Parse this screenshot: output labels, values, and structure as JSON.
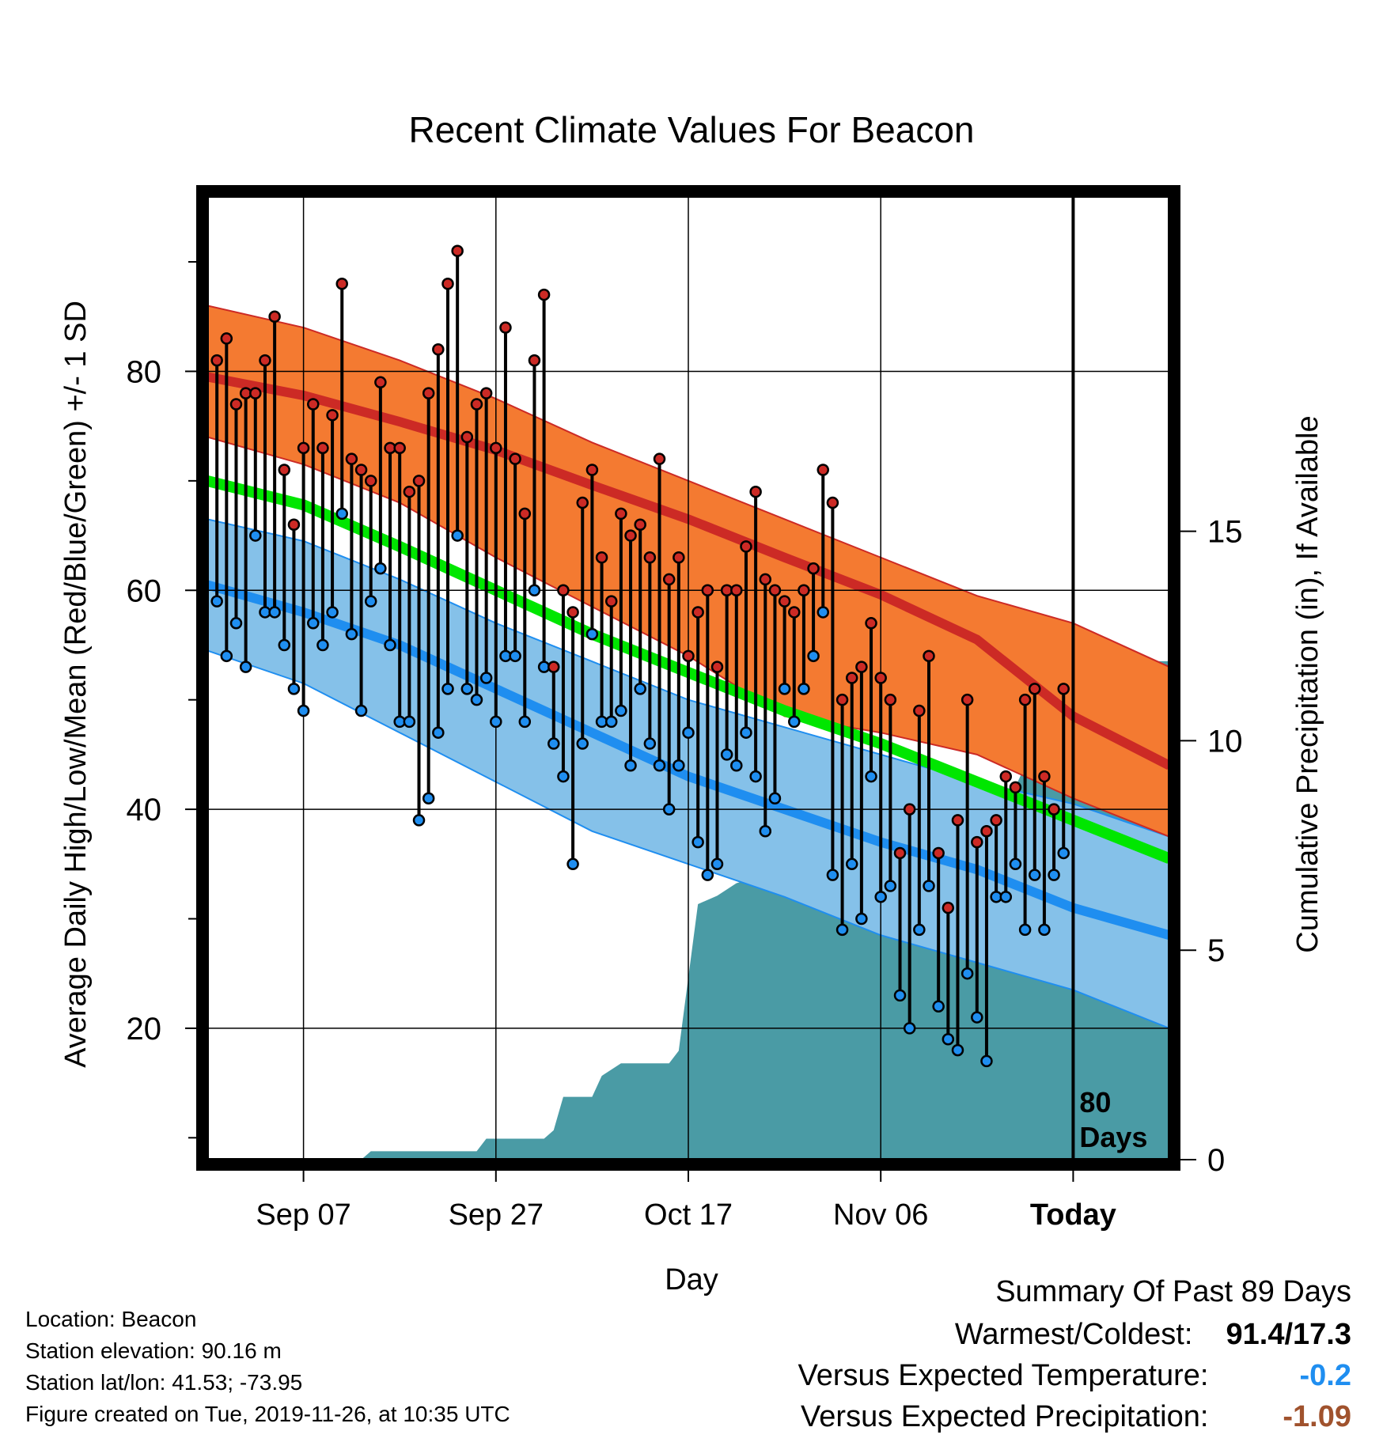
{
  "chart_data": {
    "type": "line",
    "title": "Recent Climate Values For Beacon",
    "xlabel": "Day",
    "ylabel": "Average Daily High/Low/Mean (Red/Blue/Green) +/- 1 SD",
    "y2label": "Cumulative Precipitation (in), If Available",
    "xlim": [
      0,
      100
    ],
    "ylim": [
      8,
      96
    ],
    "y2lim": [
      0,
      23
    ],
    "x_ticks": [
      {
        "x": 10,
        "label": "Sep 07"
      },
      {
        "x": 30,
        "label": "Sep 27"
      },
      {
        "x": 50,
        "label": "Oct 17"
      },
      {
        "x": 70,
        "label": "Nov 06"
      },
      {
        "x": 90,
        "label": "Today"
      }
    ],
    "y_ticks": [
      20,
      40,
      60,
      80
    ],
    "y_minor_ticks": [
      10,
      30,
      50,
      70,
      90
    ],
    "y2_ticks": [
      0,
      5,
      10,
      15
    ],
    "today_label": "80\nDays",
    "colors": {
      "high_band": "#f47a31",
      "high_edge": "#cc2a25",
      "high_mean": "#cc2a25",
      "low_band": "#85c1e9",
      "low_edge": "#1f8ef0",
      "low_mean": "#1f8ef0",
      "mean_line": "#00e600",
      "precip": "#4a9ba5",
      "high_dot": "#cc2a25",
      "low_dot": "#1f8ef0"
    },
    "normals_x": [
      0,
      10,
      20,
      30,
      40,
      50,
      60,
      70,
      80,
      90,
      100
    ],
    "normal_high": [
      79.5,
      77.8,
      75.4,
      72.8,
      69.6,
      66.5,
      63.0,
      59.6,
      55.5,
      48.5,
      44.0
    ],
    "normal_high_sd_upper": [
      86.0,
      84.0,
      81.0,
      77.5,
      73.5,
      70.0,
      66.5,
      63.0,
      59.5,
      57.0,
      53.0
    ],
    "normal_high_sd_lower": [
      74.0,
      71.5,
      68.0,
      63.0,
      58.5,
      54.0,
      48.5,
      47.0,
      45.0,
      41.0,
      37.5
    ],
    "normal_low": [
      60.5,
      58.0,
      55.0,
      51.0,
      47.0,
      43.0,
      40.0,
      37.0,
      34.5,
      31.0,
      28.5
    ],
    "normal_low_sd_upper": [
      66.5,
      64.5,
      61.0,
      57.0,
      53.5,
      50.0,
      47.5,
      45.0,
      42.5,
      40.5,
      37.5
    ],
    "normal_low_sd_lower": [
      54.5,
      51.5,
      47.0,
      42.5,
      38.0,
      35.0,
      32.0,
      28.5,
      26.0,
      23.5,
      20.0
    ],
    "normal_mean": [
      70.0,
      67.8,
      64.0,
      60.0,
      56.0,
      52.5,
      49.0,
      46.0,
      42.5,
      39.0,
      35.5
    ],
    "observed": {
      "x": [
        1,
        2,
        3,
        4,
        5,
        6,
        7,
        8,
        9,
        10,
        11,
        12,
        13,
        14,
        15,
        16,
        17,
        18,
        19,
        20,
        21,
        22,
        23,
        24,
        25,
        26,
        27,
        28,
        29,
        30,
        31,
        32,
        33,
        34,
        35,
        36,
        37,
        38,
        39,
        40,
        41,
        42,
        43,
        44,
        45,
        46,
        47,
        48,
        49,
        50,
        51,
        52,
        53,
        54,
        55,
        56,
        57,
        58,
        59,
        60,
        61,
        62,
        63,
        64,
        65,
        66,
        67,
        68,
        69,
        70,
        71,
        72,
        73,
        74,
        75,
        76,
        77,
        78,
        79,
        80,
        81,
        82,
        83,
        84,
        85,
        86,
        87,
        88,
        89
      ],
      "high": [
        81,
        83,
        77,
        78,
        78,
        81,
        85,
        71,
        66,
        73,
        77,
        73,
        76,
        88,
        72,
        71,
        70,
        79,
        73,
        73,
        69,
        70,
        78,
        82,
        88,
        91,
        74,
        77,
        78,
        73,
        84,
        72,
        67,
        81,
        87,
        53,
        60,
        58,
        68,
        71,
        63,
        59,
        67,
        65,
        66,
        63,
        72,
        61,
        63,
        54,
        58,
        60,
        53,
        60,
        60,
        64,
        69,
        61,
        60,
        59,
        58,
        60,
        62,
        71,
        68,
        50,
        52,
        53,
        57,
        52,
        50,
        36,
        40,
        49,
        54,
        36,
        31,
        39,
        50,
        37,
        38,
        39,
        43,
        42,
        50,
        51,
        43,
        40,
        51
      ],
      "low": [
        59,
        54,
        57,
        53,
        65,
        58,
        58,
        55,
        51,
        49,
        57,
        55,
        58,
        67,
        56,
        49,
        59,
        62,
        55,
        48,
        48,
        39,
        41,
        47,
        51,
        65,
        51,
        50,
        52,
        48,
        54,
        54,
        48,
        60,
        53,
        46,
        43,
        35,
        46,
        56,
        48,
        48,
        49,
        44,
        51,
        46,
        44,
        40,
        44,
        47,
        37,
        34,
        35,
        45,
        44,
        47,
        43,
        38,
        41,
        51,
        48,
        51,
        54,
        58,
        34,
        29,
        35,
        30,
        43,
        32,
        33,
        23,
        20,
        29,
        33,
        22,
        19,
        18,
        25,
        21,
        17,
        32,
        32,
        35,
        29,
        34,
        29,
        34,
        36
      ]
    },
    "precip_cum": {
      "x": [
        0,
        16,
        17,
        28,
        29,
        35,
        36,
        37,
        40,
        41,
        43,
        48,
        49,
        51,
        53,
        55,
        58,
        59,
        60,
        62,
        63,
        70,
        75,
        79,
        80,
        82,
        83,
        84,
        85,
        86,
        87,
        88,
        89,
        90,
        100
      ],
      "y": [
        0,
        0,
        0.2,
        0.2,
        0.5,
        0.5,
        0.7,
        1.5,
        1.5,
        2.0,
        2.3,
        2.3,
        2.6,
        6.1,
        6.3,
        6.6,
        6.8,
        7.1,
        7.2,
        7.2,
        7.5,
        7.6,
        7.6,
        7.8,
        8.0,
        8.2,
        8.5,
        8.9,
        9.4,
        9.8,
        10.3,
        10.5,
        11.0,
        11.9,
        11.9
      ]
    }
  },
  "footer": {
    "location": "Location: Beacon",
    "elevation": "Station elevation: 90.16 m",
    "latlon": "Station lat/lon: 41.53; -73.95",
    "created": "Figure created on Tue, 2019-11-26, at 10:35 UTC"
  },
  "summary": {
    "title": "Summary Of Past 89 Days",
    "warmest_label": "Warmest/Coldest:",
    "warmest_value": "91.4/17.3",
    "temp_label": "Versus Expected Temperature:",
    "temp_value": "-0.2",
    "temp_color": "#1f8ef0",
    "precip_label": "Versus Expected Precipitation:",
    "precip_value": "-1.09",
    "precip_color": "#a0522d"
  }
}
